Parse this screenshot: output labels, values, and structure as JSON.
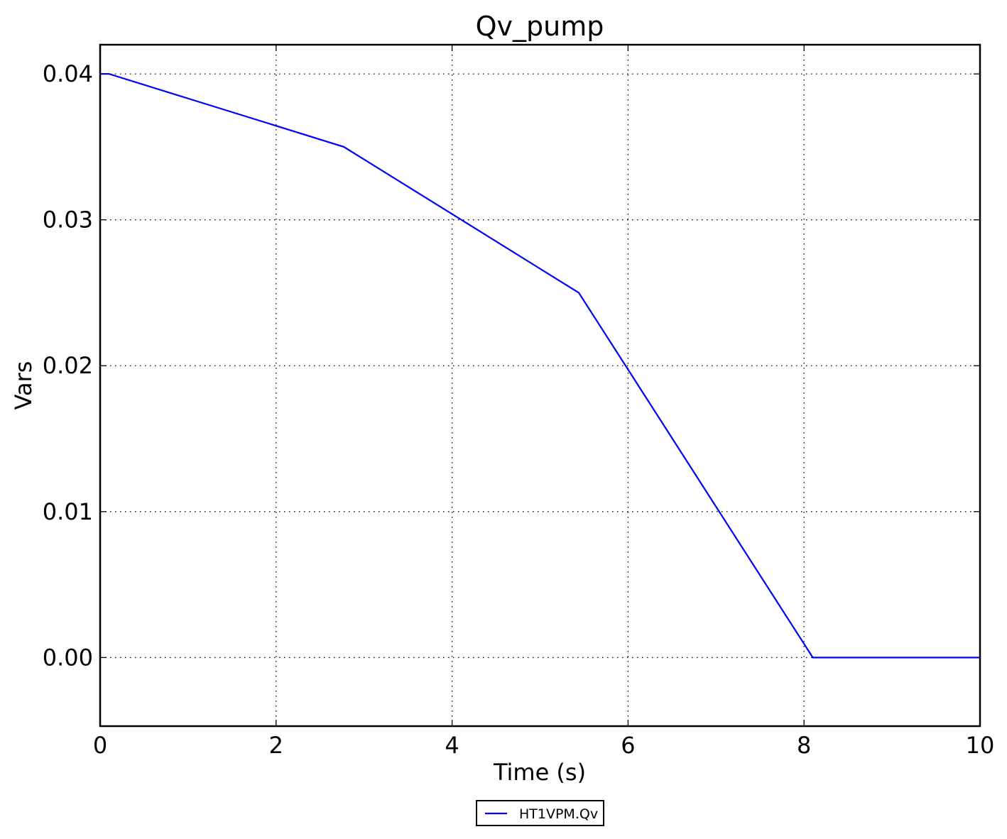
{
  "chart_data": {
    "type": "line",
    "title": "Qv_pump",
    "xlabel": "Time (s)",
    "ylabel": "Vars",
    "xlim": [
      0,
      10
    ],
    "ylim": [
      -0.0047,
      0.042
    ],
    "x_ticks": [
      0,
      2,
      4,
      6,
      8,
      10
    ],
    "x_tick_labels": [
      "0",
      "2",
      "4",
      "6",
      "8",
      "10"
    ],
    "y_ticks": [
      0.0,
      0.01,
      0.02,
      0.03,
      0.04
    ],
    "y_tick_labels": [
      "0.00",
      "0.01",
      "0.02",
      "0.03",
      "0.04"
    ],
    "grid": true,
    "legend_position": "bottom-center",
    "series": [
      {
        "name": "HT1VPM.Qv",
        "color": "#0000ff",
        "x": [
          0,
          0.1,
          2.77,
          5.44,
          8.1,
          8.2,
          10
        ],
        "y": [
          0.04,
          0.04,
          0.035,
          0.025,
          0.0,
          0.0,
          0.0
        ]
      }
    ]
  }
}
